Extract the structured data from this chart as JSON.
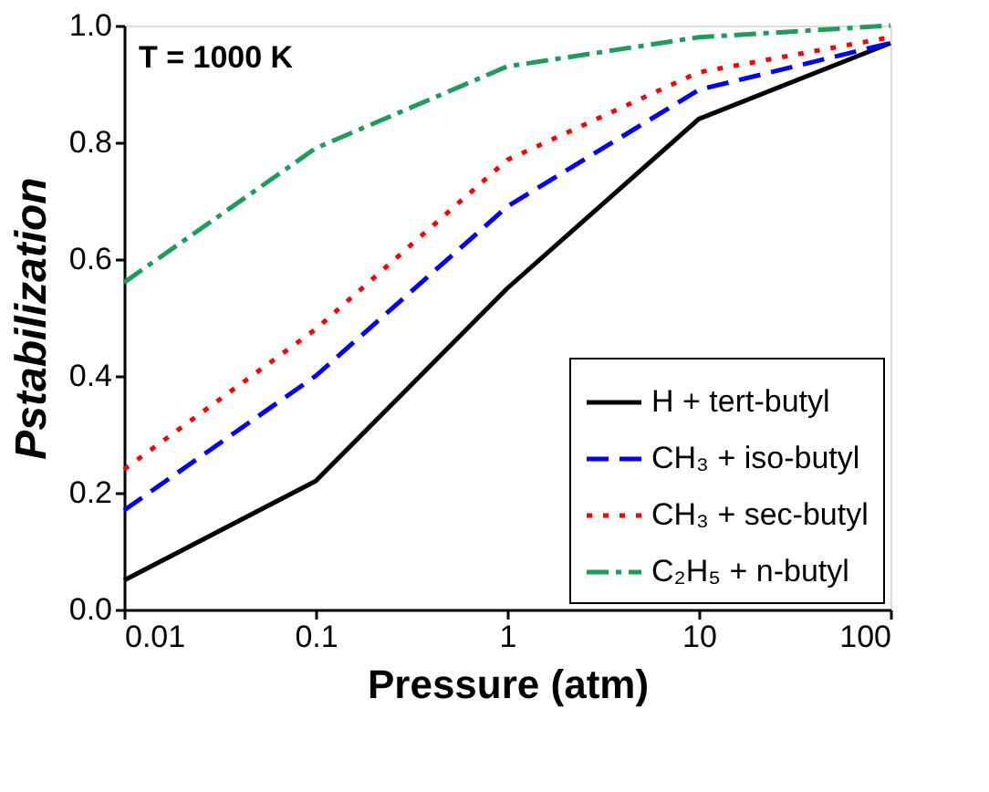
{
  "chart_data": {
    "type": "line",
    "xlabel": "Pressure (atm)",
    "ylabel": "Pstabilization",
    "annotations": [
      "T = 1000 K"
    ],
    "x": [
      0.01,
      0.1,
      1,
      10,
      100
    ],
    "log": "x",
    "xlim": [
      0.01,
      100
    ],
    "xticks": [
      0.01,
      0.1,
      1,
      10,
      100
    ],
    "ylim": [
      0,
      1
    ],
    "yticks": [
      {
        "value": 0,
        "label": "0.0"
      },
      0.2,
      0.4,
      0.6,
      0.8,
      {
        "value": 1,
        "label": "1.0"
      }
    ],
    "grid": false,
    "legend": "bottom right",
    "marker": "none",
    "series": [
      {
        "name": "H + tert-butyl",
        "color": "#000000",
        "line_style": "solid",
        "values": [
          0.05,
          0.22,
          0.55,
          0.84,
          0.97
        ]
      },
      {
        "name": "CH₃ + iso-butyl",
        "color": "#0000ff",
        "line_style": "dashed",
        "values": [
          0.17,
          0.4,
          0.69,
          0.89,
          0.97
        ]
      },
      {
        "name": "CH₃ + sec-butyl",
        "color": "#ff0000",
        "line_style": "dotted",
        "values": [
          0.24,
          0.48,
          0.77,
          0.92,
          0.98
        ]
      },
      {
        "name": "C₂H₅ + n-butyl",
        "color": "#1b9e5a",
        "line_style": "dashdot",
        "values": [
          0.56,
          0.79,
          0.93,
          0.98,
          1.0
        ]
      }
    ]
  }
}
